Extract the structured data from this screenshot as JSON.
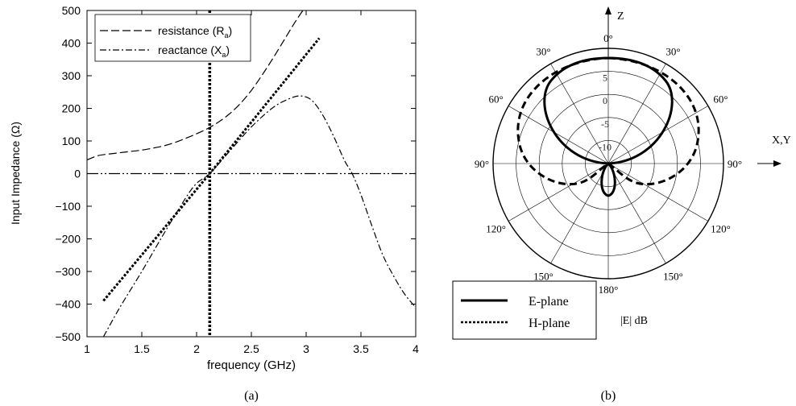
{
  "chart_data": [
    {
      "type": "line",
      "panel_label": "(a)",
      "xlabel": "frequency (GHz)",
      "ylabel": "Input Impedance (Ω)",
      "xlim": [
        1,
        4
      ],
      "ylim": [
        -500,
        500
      ],
      "xticks": [
        "1",
        "1.5",
        "2",
        "2.5",
        "3",
        "3.5",
        "4"
      ],
      "yticks": [
        "−500",
        "−400",
        "−300",
        "−200",
        "−100",
        "0",
        "100",
        "200",
        "300",
        "400",
        "500"
      ],
      "legend_position": "top-left",
      "legend": [
        {
          "label": "resistance (R",
          "sub": "a",
          "close": ")",
          "style": "dashed"
        },
        {
          "label": "reactance (X",
          "sub": "a",
          "close": ")",
          "style": "dash-dot"
        }
      ],
      "series": [
        {
          "name": "resistance (Ra)",
          "style": "dashed",
          "x": [
            1.0,
            1.1,
            1.2,
            1.3,
            1.4,
            1.5,
            1.6,
            1.7,
            1.8,
            1.9,
            2.0,
            2.1,
            2.2,
            2.3,
            2.4,
            2.5,
            2.6,
            2.7,
            2.8,
            2.9,
            2.97
          ],
          "y": [
            42,
            55,
            60,
            64,
            68,
            72,
            78,
            85,
            95,
            108,
            122,
            138,
            158,
            183,
            215,
            255,
            303,
            355,
            410,
            465,
            500
          ]
        },
        {
          "name": "reactance (Xa)",
          "style": "dash-dot",
          "x": [
            1.15,
            1.3,
            1.5,
            1.7,
            1.9,
            2.0,
            2.12,
            2.3,
            2.5,
            2.7,
            2.85,
            2.95,
            3.05,
            3.15,
            3.25,
            3.35,
            3.42,
            3.5,
            3.6,
            3.7,
            3.8,
            3.9,
            4.0
          ],
          "y": [
            -500,
            -410,
            -300,
            -185,
            -75,
            -30,
            0,
            68,
            143,
            203,
            230,
            238,
            225,
            180,
            115,
            40,
            0,
            -65,
            -160,
            -250,
            -315,
            -370,
            -410
          ]
        },
        {
          "name": "",
          "style": "dash-dot-dot",
          "x": [
            1.0,
            4.0
          ],
          "y": [
            0,
            0
          ]
        },
        {
          "name": "",
          "style": "dotted",
          "x": [
            1.15,
            2.12,
            3.12
          ],
          "y": [
            -390,
            0,
            415
          ]
        }
      ],
      "vline": {
        "x": 2.12,
        "style": "dotted"
      }
    },
    {
      "type": "polar",
      "panel_label": "(b)",
      "unit_label": "|E| dB",
      "axis_top": "Z",
      "axis_right": "X,Y",
      "rlim": [
        -15,
        10
      ],
      "radial_ticks": [
        "5",
        "0",
        "-5",
        "-10"
      ],
      "angle_labels": [
        {
          "deg": 0,
          "text": "0°"
        },
        {
          "deg": 30,
          "text": "30°"
        },
        {
          "deg": -30,
          "text": "30°"
        },
        {
          "deg": 60,
          "text": "60°"
        },
        {
          "deg": -60,
          "text": "60°"
        },
        {
          "deg": 90,
          "text": "90°"
        },
        {
          "deg": -90,
          "text": "90°"
        },
        {
          "deg": 120,
          "text": "120°"
        },
        {
          "deg": -120,
          "text": "120°"
        },
        {
          "deg": 150,
          "text": "150°"
        },
        {
          "deg": -150,
          "text": "150°"
        },
        {
          "deg": 180,
          "text": "180°"
        }
      ],
      "legend": [
        {
          "label": "E-plane",
          "style": "solid"
        },
        {
          "label": "H-plane",
          "style": "dotted"
        }
      ]
    }
  ]
}
